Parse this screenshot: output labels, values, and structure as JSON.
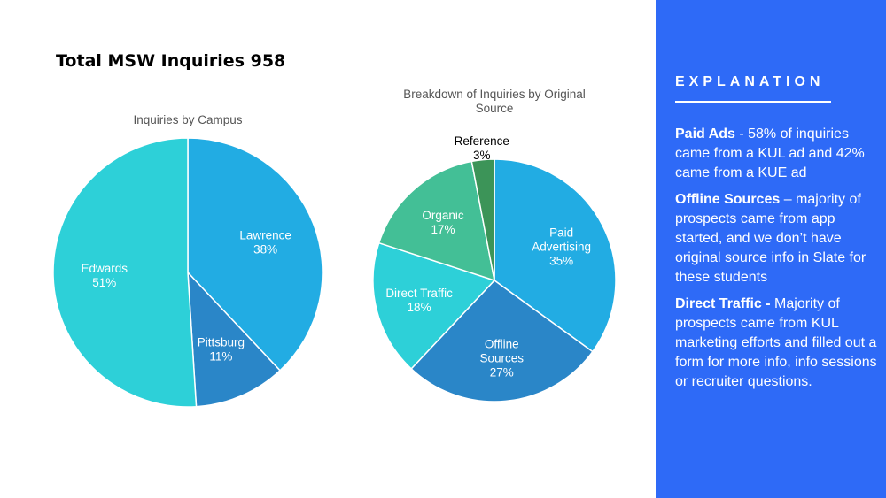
{
  "slide": {
    "title": "Total MSW Inquiries 958"
  },
  "chart_data": [
    {
      "type": "pie",
      "title": "Inquiries by Campus",
      "slices": [
        {
          "name": "Lawrence",
          "value": 38,
          "label": "38%",
          "color": "#22ace3"
        },
        {
          "name": "Pittsburg",
          "value": 11,
          "label": "11%",
          "color": "#2a86c8"
        },
        {
          "name": "Edwards",
          "value": 51,
          "label": "51%",
          "color": "#2dd0d8"
        }
      ]
    },
    {
      "type": "pie",
      "title_lines": [
        "Breakdown of Inquiries by Original",
        "Source"
      ],
      "slices": [
        {
          "name": "Paid Advertising",
          "name_lines": [
            "Paid",
            "Advertising"
          ],
          "value": 35,
          "label": "35%",
          "color": "#22ace3"
        },
        {
          "name": "Offline Sources",
          "name_lines": [
            "Offline",
            "Sources"
          ],
          "value": 27,
          "label": "27%",
          "color": "#2a86c8"
        },
        {
          "name": "Direct Traffic",
          "name_lines": [
            "Direct Traffic"
          ],
          "value": 18,
          "label": "18%",
          "color": "#2dd0d8"
        },
        {
          "name": "Organic",
          "name_lines": [
            "Organic"
          ],
          "value": 17,
          "label": "17%",
          "color": "#43bf96"
        },
        {
          "name": "Reference",
          "name_lines": [
            "Reference"
          ],
          "value": 3,
          "label": "3%",
          "color": "#3c9458"
        }
      ]
    }
  ],
  "explanation": {
    "heading": "EXPLANATION",
    "items": [
      {
        "term": "Paid Ads",
        "separator": " -  ",
        "text": "58% of inquiries came from a KUL ad and 42% came from a KUE ad"
      },
      {
        "term": "Offline Sources",
        "separator": " – ",
        "text": "majority of prospects came from app started, and we don’t have original source info in Slate for these students"
      },
      {
        "term": "Direct Traffic -",
        "separator": "  ",
        "text": "Majority of prospects came from KUL marketing efforts and filled out a form for more info, info sessions or recruiter questions."
      }
    ]
  }
}
